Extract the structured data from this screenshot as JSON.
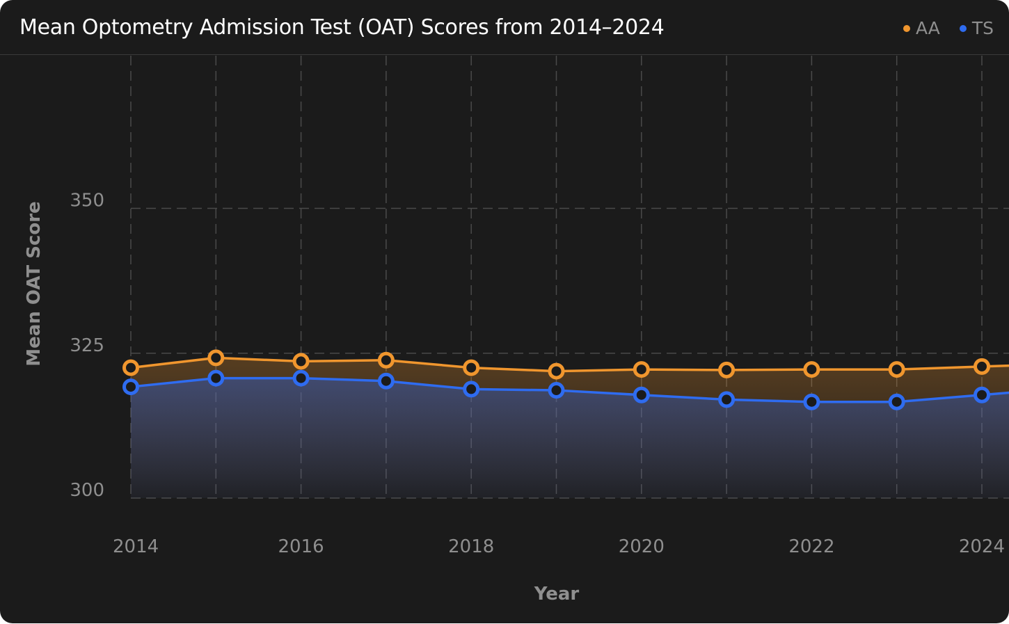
{
  "chart_data": {
    "type": "line",
    "title": "Mean Optometry Admission Test (OAT) Scores from 2014–2024",
    "xlabel": "Year",
    "ylabel": "Mean OAT Score",
    "x": [
      2014,
      2015,
      2016,
      2017,
      2018,
      2019,
      2020,
      2021,
      2022,
      2023,
      2024
    ],
    "x_tick_labels": [
      "2014",
      "2016",
      "2018",
      "2020",
      "2022",
      "2024"
    ],
    "y_tick_labels": [
      "300",
      "325",
      "350"
    ],
    "ylim": [
      300,
      375
    ],
    "series": [
      {
        "name": "AA",
        "color": "#f0962e",
        "values": [
          322.5,
          324.2,
          323.6,
          323.8,
          322.5,
          321.9,
          322.2,
          322.1,
          322.2,
          322.2,
          322.7
        ]
      },
      {
        "name": "TS",
        "color": "#2f6cf0",
        "values": [
          319.2,
          320.7,
          320.7,
          320.2,
          318.8,
          318.6,
          317.8,
          317.0,
          316.6,
          316.6,
          317.8
        ]
      }
    ],
    "grid": true,
    "legend_position": "top-right",
    "area_fill": true,
    "background": "#1b1b1b"
  }
}
